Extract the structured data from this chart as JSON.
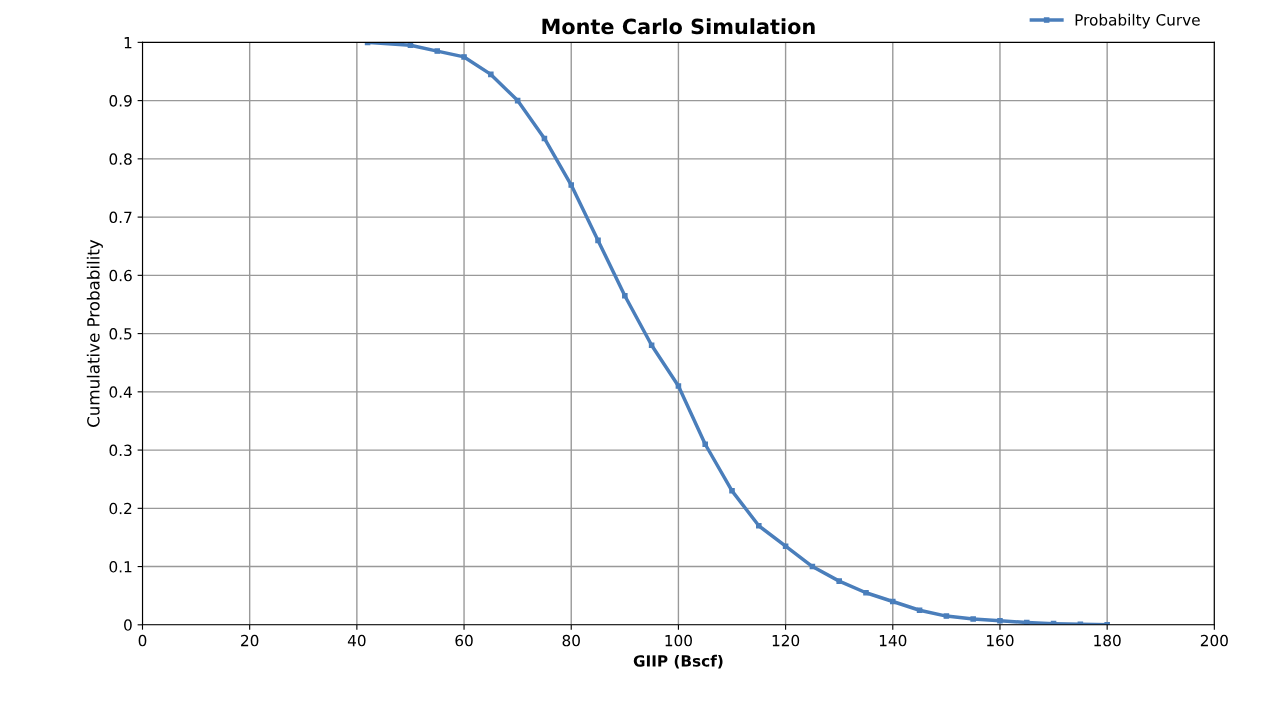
{
  "chart_data": {
    "type": "line",
    "title": "Monte Carlo Simulation",
    "xlabel": "GIIP (Bscf)",
    "ylabel": "Cumulative Probability",
    "xlim": [
      0,
      200
    ],
    "xticks": [
      0,
      20,
      40,
      60,
      80,
      100,
      120,
      140,
      160,
      180,
      200
    ],
    "ylim": [
      0,
      1
    ],
    "yticks": [
      0,
      0.1,
      0.2,
      0.3,
      0.4,
      0.5,
      0.6,
      0.7,
      0.8,
      0.9,
      1
    ],
    "grid": true,
    "legend": "top right",
    "marker": "square",
    "line_style": "solid",
    "series": [
      {
        "name": "Probabilty Curve",
        "color": "#4a7ebb",
        "x": [
          42,
          50,
          55,
          60,
          65,
          70,
          75,
          80,
          85,
          90,
          95,
          100,
          105,
          110,
          115,
          120,
          125,
          130,
          135,
          140,
          145,
          150,
          155,
          160,
          165,
          170,
          175,
          180
        ],
        "values": [
          1.0,
          0.995,
          0.985,
          0.975,
          0.945,
          0.9,
          0.835,
          0.755,
          0.66,
          0.565,
          0.48,
          0.41,
          0.31,
          0.23,
          0.17,
          0.135,
          0.1,
          0.075,
          0.055,
          0.04,
          0.025,
          0.015,
          0.01,
          0.007,
          0.004,
          0.002,
          0.001,
          0.0
        ]
      }
    ]
  }
}
